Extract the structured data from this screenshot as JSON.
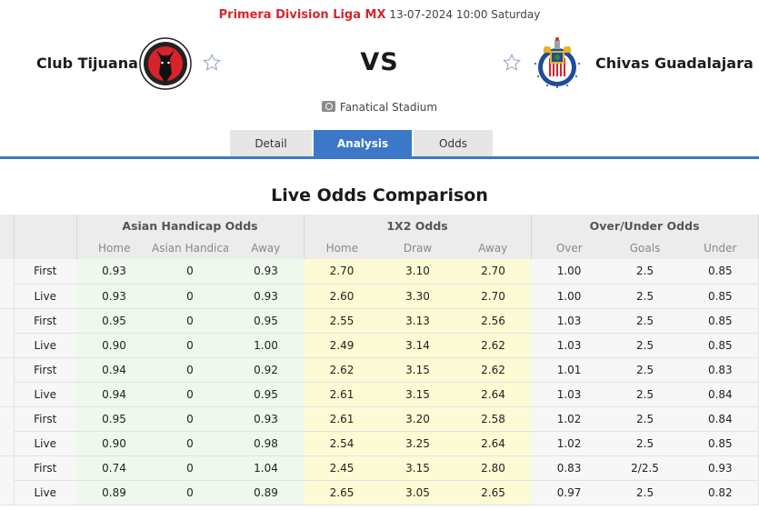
{
  "match": {
    "league": "Primera Division Liga MX",
    "datetime": "13-07-2024 10:00 Saturday",
    "home_team": "Club Tijuana",
    "away_team": "Chivas Guadalajara",
    "vs_label": "VS",
    "venue": "Fanatical Stadium",
    "home_logo_text": "CLUB TIJUANA",
    "icons": {
      "favorite": "star-outline-icon",
      "venue": "stadium-icon"
    }
  },
  "tabs": [
    {
      "label": "Detail",
      "active": false
    },
    {
      "label": "Analysis",
      "active": true
    },
    {
      "label": "Odds",
      "active": false
    }
  ],
  "colors": {
    "accent": "#3c78c8",
    "league": "#d8252b",
    "asian_handicap_bg": "#eef8ec",
    "x12_bg": "#fcfbd4",
    "header_bg": "#ececec"
  },
  "section_title": "Live Odds Comparison",
  "table": {
    "groups": [
      "Asian Handicap Odds",
      "1X2 Odds",
      "Over/Under Odds"
    ],
    "subheaders": {
      "asian_handicap": [
        "Home",
        "Asian Handicap",
        "Away"
      ],
      "x12": [
        "Home",
        "Draw",
        "Away"
      ],
      "over_under": [
        "Over",
        "Goals",
        "Under"
      ]
    },
    "rows": [
      {
        "type": "First",
        "ah": [
          "0.93",
          "0",
          "0.93"
        ],
        "x12": [
          "2.70",
          "3.10",
          "2.70"
        ],
        "ou": [
          "1.00",
          "2.5",
          "0.85"
        ]
      },
      {
        "type": "Live",
        "ah": [
          "0.93",
          "0",
          "0.93"
        ],
        "x12": [
          "2.60",
          "3.30",
          "2.70"
        ],
        "ou": [
          "1.00",
          "2.5",
          "0.85"
        ]
      },
      {
        "type": "First",
        "ah": [
          "0.95",
          "0",
          "0.95"
        ],
        "x12": [
          "2.55",
          "3.13",
          "2.56"
        ],
        "ou": [
          "1.03",
          "2.5",
          "0.85"
        ]
      },
      {
        "type": "Live",
        "ah": [
          "0.90",
          "0",
          "1.00"
        ],
        "x12": [
          "2.49",
          "3.14",
          "2.62"
        ],
        "ou": [
          "1.03",
          "2.5",
          "0.85"
        ]
      },
      {
        "type": "First",
        "ah": [
          "0.94",
          "0",
          "0.92"
        ],
        "x12": [
          "2.62",
          "3.15",
          "2.62"
        ],
        "ou": [
          "1.01",
          "2.5",
          "0.83"
        ]
      },
      {
        "type": "Live",
        "ah": [
          "0.94",
          "0",
          "0.95"
        ],
        "x12": [
          "2.61",
          "3.15",
          "2.64"
        ],
        "ou": [
          "1.03",
          "2.5",
          "0.84"
        ]
      },
      {
        "type": "First",
        "ah": [
          "0.95",
          "0",
          "0.93"
        ],
        "x12": [
          "2.61",
          "3.20",
          "2.58"
        ],
        "ou": [
          "1.02",
          "2.5",
          "0.84"
        ]
      },
      {
        "type": "Live",
        "ah": [
          "0.90",
          "0",
          "0.98"
        ],
        "x12": [
          "2.54",
          "3.25",
          "2.64"
        ],
        "ou": [
          "1.02",
          "2.5",
          "0.85"
        ]
      },
      {
        "type": "First",
        "ah": [
          "0.74",
          "0",
          "1.04"
        ],
        "x12": [
          "2.45",
          "3.15",
          "2.80"
        ],
        "ou": [
          "0.83",
          "2/2.5",
          "0.93"
        ]
      },
      {
        "type": "Live",
        "ah": [
          "0.89",
          "0",
          "0.89"
        ],
        "x12": [
          "2.65",
          "3.05",
          "2.65"
        ],
        "ou": [
          "0.97",
          "2.5",
          "0.82"
        ]
      }
    ]
  }
}
